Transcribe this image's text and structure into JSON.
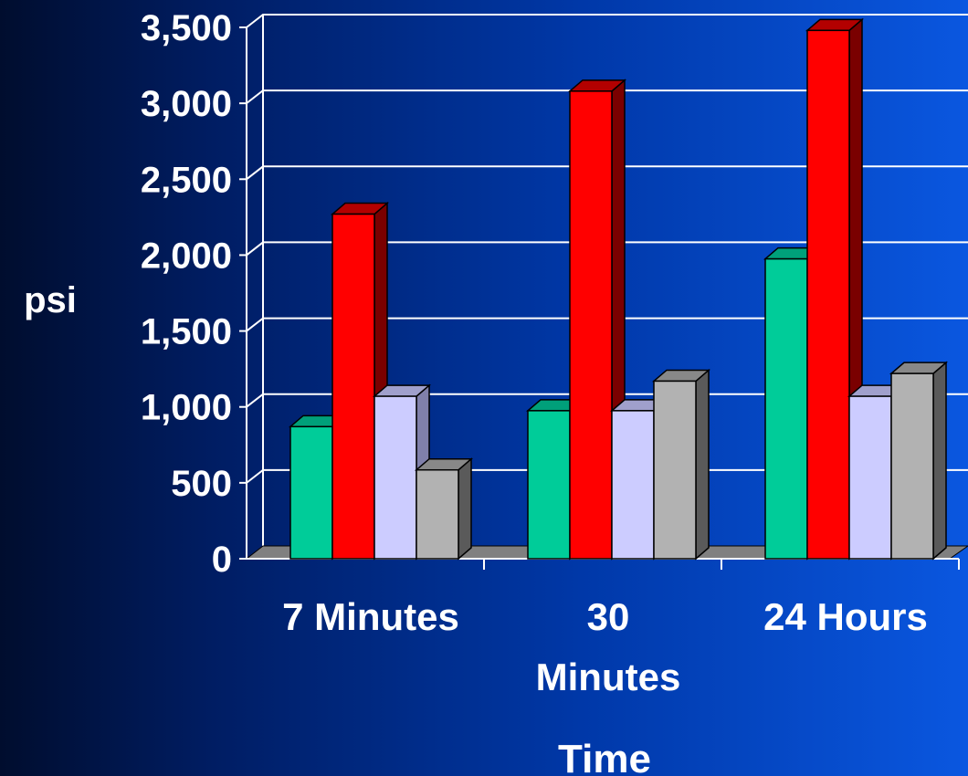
{
  "chart_data": {
    "type": "bar",
    "style": "3d-clustered",
    "categories": [
      [
        "7 Minutes"
      ],
      [
        "30",
        "Minutes"
      ],
      [
        "24 Hours"
      ]
    ],
    "series": [
      {
        "values": [
          870,
          975,
          1975
        ],
        "color": "#00cc99",
        "side": "#009970",
        "top": "#00a07a"
      },
      {
        "values": [
          2270,
          3080,
          3480
        ],
        "color": "#ff0000",
        "side": "#7a0000",
        "top": "#b30000"
      },
      {
        "values": [
          1070,
          975,
          1070
        ],
        "color": "#ccccff",
        "side": "#8080aa",
        "top": "#a0a0cc"
      },
      {
        "values": [
          585,
          1170,
          1220
        ],
        "color": "#b2b2b2",
        "side": "#5a5a5a",
        "top": "#888888"
      }
    ],
    "ylim": [
      0,
      3500
    ],
    "yticks": [
      "0",
      "500",
      "1,000",
      "1,500",
      "2,000",
      "2,500",
      "3,000",
      "3,500"
    ],
    "ylabel": "psi",
    "xlabel": "Time",
    "grid": true,
    "colors": {
      "grid": "#ffffff",
      "floor": "#808080"
    }
  }
}
